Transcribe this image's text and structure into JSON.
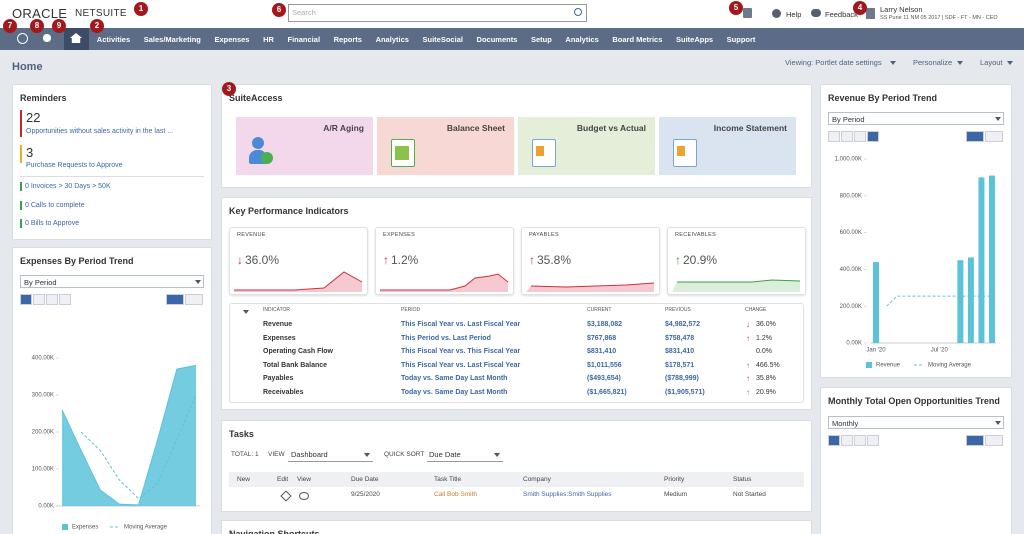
{
  "header": {
    "logo_oracle": "ORACLE",
    "logo_netsuite": "NETSUITE",
    "search_placeholder": "Search",
    "help": "Help",
    "feedback": "Feedback",
    "user_name": "Larry Nelson",
    "user_role": "SS Pune 11 NM 05 2017 | SDF - FT - MN - CEO"
  },
  "badges": [
    "1",
    "2",
    "3",
    "4",
    "5",
    "6",
    "7",
    "8",
    "9"
  ],
  "nav": [
    "Activities",
    "Sales/Marketing",
    "Expenses",
    "HR",
    "Financial",
    "Reports",
    "Analytics",
    "SuiteSocial",
    "Documents",
    "Setup",
    "Analytics",
    "Board Metrics",
    "SuiteApps",
    "Support"
  ],
  "page": {
    "title": "Home",
    "viewing": "Viewing: Portlet date settings",
    "personalize": "Personalize",
    "layout": "Layout"
  },
  "reminders": {
    "title": "Reminders",
    "items": [
      {
        "count": "22",
        "text": "Opportunities without sales activity in the last ..."
      },
      {
        "count": "3",
        "text": "Purchase Requests to Approve"
      }
    ],
    "links": [
      "0 Invoices > 30 Days > 50K",
      "0 Calls to complete",
      "0 Bills to Approve"
    ]
  },
  "suiteaccess": {
    "title": "SuiteAccess",
    "tiles": [
      "A/R Aging",
      "Balance Sheet",
      "Budget vs Actual",
      "Income Statement"
    ]
  },
  "kpi": {
    "title": "Key Performance Indicators",
    "cards": [
      {
        "label": "REVENUE",
        "arrow": "↓",
        "arrow_color": "#d0303a",
        "value": "36.0%"
      },
      {
        "label": "EXPENSES",
        "arrow": "↑",
        "arrow_color": "#d0303a",
        "value": "1.2%"
      },
      {
        "label": "PAYABLES",
        "arrow": "↑",
        "arrow_color": "#d0303a",
        "value": "35.8%"
      },
      {
        "label": "RECEIVABLES",
        "arrow": "↑",
        "arrow_color": "#3aa04a",
        "value": "20.9%"
      }
    ],
    "columns": [
      "INDICATOR",
      "PERIOD",
      "CURRENT",
      "PREVIOUS",
      "CHANGE"
    ],
    "rows": [
      {
        "indicator": "Revenue",
        "period": "This Fiscal Year vs. Last Fiscal Year",
        "current": "$3,188,082",
        "previous": "$4,982,572",
        "arrow": "↓",
        "arrow_color": "#d0303a",
        "change": "36.0%"
      },
      {
        "indicator": "Expenses",
        "period": "This Period vs. Last Period",
        "current": "$767,868",
        "previous": "$758,478",
        "arrow": "↑",
        "arrow_color": "#d0303a",
        "change": "1.2%"
      },
      {
        "indicator": "Operating Cash Flow",
        "period": "This Fiscal Year vs. This Fiscal Year",
        "current": "$831,410",
        "previous": "$831,410",
        "change": "0.0%"
      },
      {
        "indicator": "Total Bank Balance",
        "period": "This Fiscal Year vs. Last Fiscal Year",
        "current": "$1,011,556",
        "previous": "$178,571",
        "arrow": "↑",
        "arrow_color": "#3aa04a",
        "change": "466.5%"
      },
      {
        "indicator": "Payables",
        "period": "Today vs. Same Day Last Month",
        "current": "($493,654)",
        "previous": "($788,999)",
        "arrow": "↑",
        "arrow_color": "#d0303a",
        "change": "35.8%"
      },
      {
        "indicator": "Receivables",
        "period": "Today vs. Same Day Last Month",
        "current": "($1,665,821)",
        "previous": "($1,905,571)",
        "arrow": "↑",
        "arrow_color": "#3aa04a",
        "change": "20.9%"
      }
    ]
  },
  "tasks": {
    "title": "Tasks",
    "total": "TOTAL: 1",
    "view_label": "VIEW",
    "view": "Dashboard",
    "sort_label": "QUICK SORT",
    "sort": "Due Date",
    "columns": [
      "New",
      "Edit",
      "View",
      "Due Date",
      "Task Title",
      "Company",
      "Priority",
      "Status"
    ],
    "row": [
      "9/25/2020",
      "Call Bob Smith",
      "Smith Supplies:Smith Supplies",
      "Medium",
      "Not Started"
    ]
  },
  "navigation_shortcuts": {
    "title": "Navigation Shortcuts"
  },
  "opportunities": {
    "title": "Monthly Total Open Opportunities Trend",
    "select": "Monthly"
  },
  "chart_data": [
    {
      "type": "area",
      "title": "Expenses By Period Trend",
      "select": "By Period",
      "categories": [
        null,
        null,
        null,
        null,
        null,
        null,
        null,
        null
      ],
      "series": [
        {
          "name": "Expenses",
          "color": "#5bc3d9",
          "values": [
            260,
            150,
            43,
            5,
            3,
            180,
            370,
            380
          ]
        },
        {
          "name": "Moving Average",
          "color": "#5bc3d9",
          "values": [
            null,
            200,
            150,
            70,
            20,
            60,
            180,
            300
          ]
        }
      ],
      "ylim": [
        0,
        400
      ],
      "yticks": [
        {
          "value": 0,
          "label": "0.00K"
        },
        {
          "value": 100,
          "label": "100.00K"
        },
        {
          "value": 200,
          "label": "200.00K"
        },
        {
          "value": 300,
          "label": "300.00K"
        },
        {
          "value": 400,
          "label": "400.00K"
        }
      ],
      "grid": false
    },
    {
      "type": "bar",
      "title": "Revenue By Period Trend",
      "select": "By Period",
      "categories": [
        "Jan '20",
        null,
        null,
        null,
        null,
        null,
        "Jul '20",
        null,
        null,
        null,
        null,
        null
      ],
      "series": [
        {
          "name": "Revenue",
          "color": "#5bc3d9",
          "values": [
            440,
            0,
            0,
            0,
            0,
            0,
            0,
            0,
            450,
            465,
            900,
            910
          ]
        },
        {
          "name": "Moving Average",
          "color": "#5bc3d9",
          "values": [
            null,
            200,
            255,
            255,
            255,
            255,
            255,
            255,
            255,
            255,
            255,
            255
          ]
        }
      ],
      "ylim": [
        0,
        1000
      ],
      "yticks": [
        {
          "value": 0,
          "label": "0.00K"
        },
        {
          "value": 200,
          "label": "200.00K"
        },
        {
          "value": 400,
          "label": "400.00K"
        },
        {
          "value": 600,
          "label": "600.00K"
        },
        {
          "value": 800,
          "label": "800.00K"
        },
        {
          "value": 1000,
          "label": "1,000.00K"
        }
      ],
      "grid": false
    }
  ]
}
